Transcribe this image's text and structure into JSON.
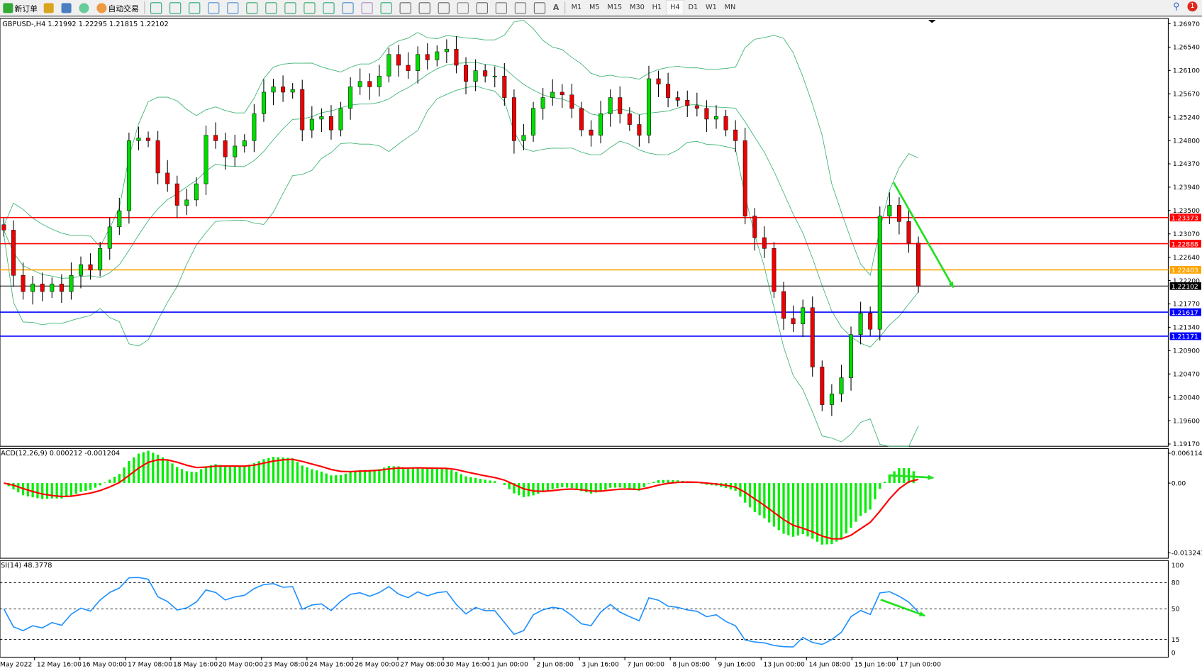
{
  "toolbar": {
    "new_order": "新订单",
    "auto_trading": "自动交易",
    "icons": [
      "new-order-icon",
      "navigator-icon",
      "data-window-icon",
      "signal-icon",
      "auto-trading-icon",
      "bar-chart-icon",
      "candlestick-icon",
      "line-chart-icon",
      "zoom-in-icon",
      "zoom-out-icon",
      "tile-windows-icon",
      "chart-shift-icon",
      "autoscroll-icon",
      "indicators-icon",
      "periods-icon",
      "templates-icon",
      "cursor-icon",
      "crosshair-icon",
      "vertical-line-icon",
      "horizontal-line-icon",
      "trendline-icon",
      "fibonacci-icon",
      "fibo-levels-icon",
      "text-icon",
      "text-label-icon",
      "arrows-icon"
    ],
    "text_tool": "A",
    "timeframes": [
      "M1",
      "M5",
      "M15",
      "M30",
      "H1",
      "H4",
      "D1",
      "W1",
      "MN"
    ],
    "active_timeframe": "H4",
    "notification_count": "1"
  },
  "main_chart": {
    "symbol_info": "GBPUSD-,H4  1.21992 1.22295 1.21815 1.22102",
    "price_ticks": [
      "1.26970",
      "1.26540",
      "1.26100",
      "1.25670",
      "1.25240",
      "1.24800",
      "1.24370",
      "1.23940",
      "1.23500",
      "1.23070",
      "1.22640",
      "1.22200",
      "1.21770",
      "1.21340",
      "1.20900",
      "1.20470",
      "1.20040",
      "1.19600",
      "1.19170"
    ],
    "levels": [
      {
        "price": 1.23373,
        "label": "1.23373",
        "color": "#ff0000"
      },
      {
        "price": 1.22888,
        "label": "1.22888",
        "color": "#ff0000"
      },
      {
        "price": 1.22403,
        "label": "1.22403",
        "color": "#ffa500"
      },
      {
        "price": 1.22102,
        "label": "1.22102",
        "color": "#000000"
      },
      {
        "price": 1.21617,
        "label": "1.21617",
        "color": "#0000ff"
      },
      {
        "price": 1.21171,
        "label": "1.21171",
        "color": "#0000ff"
      }
    ],
    "bull_color": "#00dd00",
    "bear_color": "#ee0000",
    "band_color": "#3cb371",
    "arrow_color": "#22e022"
  },
  "macd": {
    "label": "ACD(12,26,9) 0.000212 -0.001204",
    "ticks": [
      "0.006114",
      "0.00",
      "-0.013241"
    ],
    "hist_color": "#00ee00",
    "signal_color": "#ff0000"
  },
  "rsi": {
    "label": "SI(14) 48.3778",
    "ticks": [
      "100",
      "80",
      "50",
      "15",
      "0"
    ],
    "line_color": "#1e90ff"
  },
  "time_axis": [
    "May 2022",
    "12 May 16:00",
    "16 May 00:00",
    "17 May 08:00",
    "18 May 16:00",
    "20 May 00:00",
    "23 May 08:00",
    "24 May 16:00",
    "26 May 00:00",
    "27 May 08:00",
    "30 May 16:00",
    "1 Jun 00:00",
    "2 Jun 08:00",
    "3 Jun 16:00",
    "7 Jun 00:00",
    "8 Jun 08:00",
    "9 Jun 16:00",
    "13 Jun 00:00",
    "14 Jun 08:00",
    "15 Jun 16:00",
    "17 Jun 00:00"
  ],
  "chart_data": {
    "type": "candlestick",
    "title": "GBPUSD-,H4",
    "ylim": [
      1.1917,
      1.2697
    ],
    "close": [
      1.2314,
      1.223,
      1.22,
      1.2214,
      1.22,
      1.2214,
      1.22,
      1.223,
      1.225,
      1.224,
      1.228,
      1.232,
      1.235,
      1.248,
      1.2485,
      1.248,
      1.242,
      1.24,
      1.236,
      1.237,
      1.24,
      1.249,
      1.248,
      1.245,
      1.247,
      1.248,
      1.253,
      1.257,
      1.258,
      1.257,
      1.2575,
      1.25,
      1.252,
      1.2525,
      1.25,
      1.254,
      1.258,
      1.259,
      1.258,
      1.26,
      1.264,
      1.262,
      1.261,
      1.264,
      1.263,
      1.2645,
      1.265,
      1.262,
      1.259,
      1.261,
      1.26,
      1.26,
      1.256,
      1.248,
      1.249,
      1.254,
      1.256,
      1.257,
      1.2565,
      1.254,
      1.25,
      1.249,
      1.253,
      1.256,
      1.253,
      1.251,
      1.249,
      1.2595,
      1.2585,
      1.256,
      1.2555,
      1.2545,
      1.254,
      1.252,
      1.2525,
      1.25,
      1.248,
      1.234,
      1.23,
      1.228,
      1.22,
      1.215,
      1.214,
      1.217,
      1.206,
      1.199,
      1.201,
      1.204,
      1.212,
      1.216,
      1.213,
      1.234,
      1.236,
      1.233,
      1.229,
      1.221
    ]
  }
}
